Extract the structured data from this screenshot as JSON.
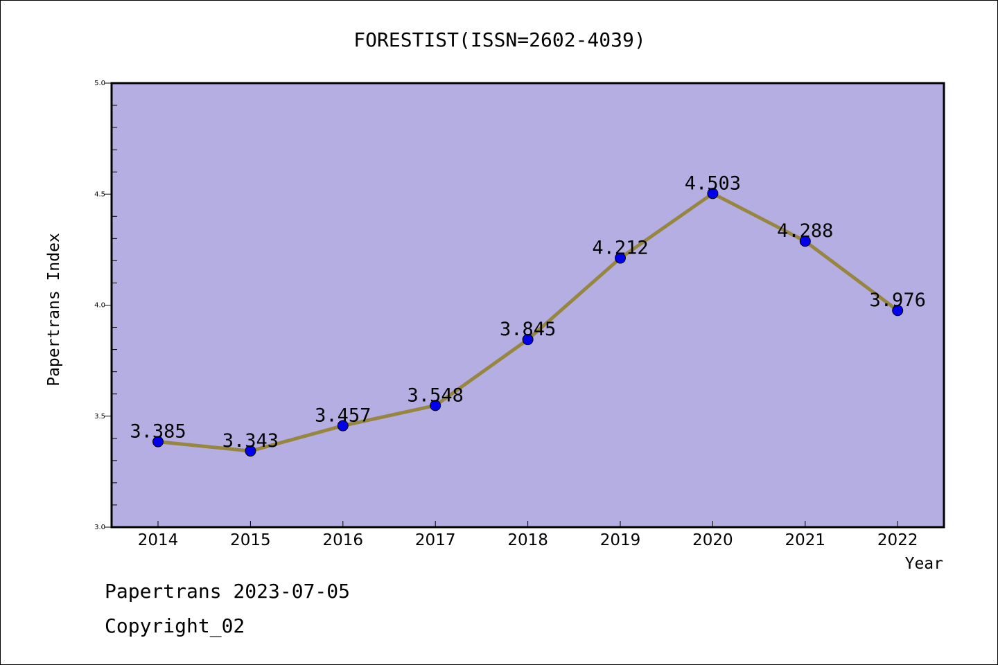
{
  "chart_data": {
    "type": "line",
    "title": "FORESTIST(ISSN=2602-4039)",
    "xlabel": "Year",
    "ylabel": "Papertrans Index",
    "categories": [
      "2014",
      "2015",
      "2016",
      "2017",
      "2018",
      "2019",
      "2020",
      "2021",
      "2022"
    ],
    "series": [
      {
        "values": [
          3.385,
          3.343,
          3.457,
          3.548,
          3.845,
          4.212,
          4.503,
          4.288,
          3.976
        ],
        "labels": [
          "3.385",
          "3.343",
          "3.457",
          "3.548",
          "3.845",
          "4.212",
          "4.503",
          "4.288",
          "3.976"
        ],
        "line_color": "#978640",
        "marker_color": "#0000ee"
      }
    ],
    "ylim": [
      3.0,
      5.0
    ],
    "y_ticks": [
      "3.0",
      "3.5",
      "4.0",
      "4.5",
      "5.0"
    ],
    "plot_background": "#b5aee2",
    "grid": false,
    "legend": "none"
  },
  "footer": {
    "line1": "Papertrans 2023-07-05",
    "line2": "Copyright_02"
  }
}
